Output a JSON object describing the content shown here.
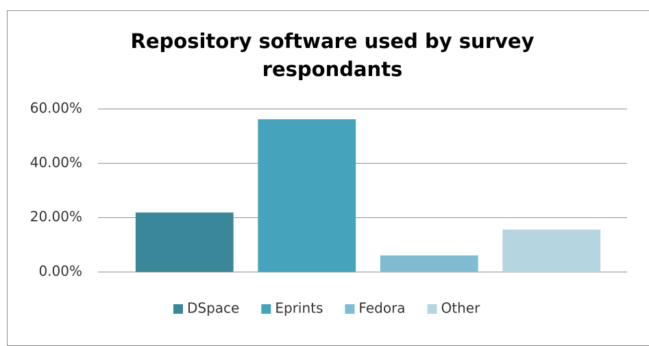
{
  "chart_data": {
    "type": "bar",
    "title": "Repository software used by survey respondants",
    "categories": [
      "DSpace",
      "Eprints",
      "Fedora",
      "Other"
    ],
    "values": [
      21.9,
      56.2,
      6.1,
      15.6
    ],
    "colors": [
      "#3a8799",
      "#46a3bc",
      "#7fbcd2",
      "#b5d5e0"
    ],
    "ylim": [
      0,
      60
    ],
    "yticks": [
      {
        "value": 0,
        "label": "0.00%"
      },
      {
        "value": 20,
        "label": "20.00%"
      },
      {
        "value": 40,
        "label": "40.00%"
      },
      {
        "value": 60,
        "label": "60.00%"
      }
    ],
    "grid": true,
    "legend": "bottom"
  }
}
